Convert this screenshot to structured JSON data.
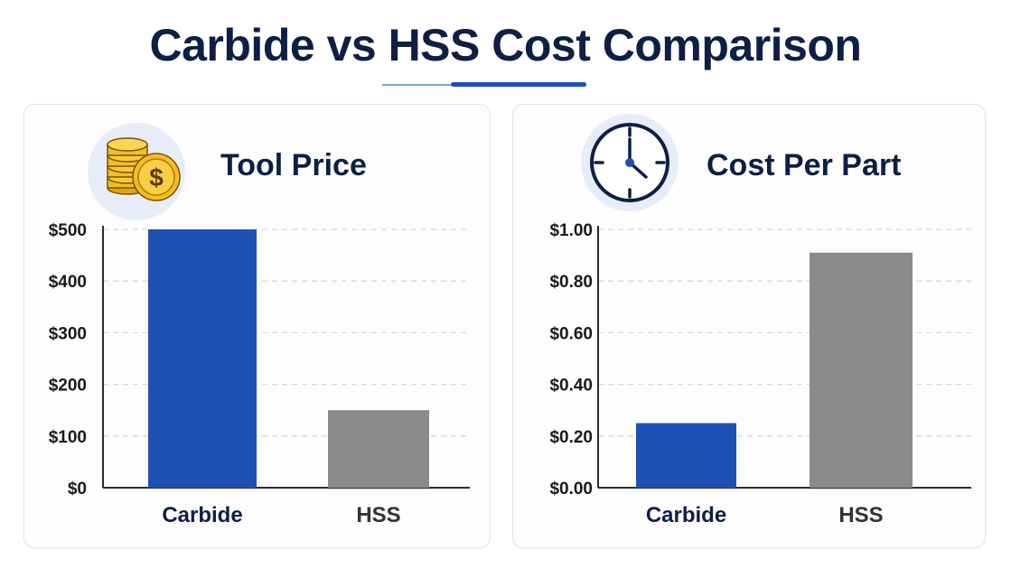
{
  "title": "Carbide vs HSS Cost Comparison",
  "chart_data": [
    {
      "type": "bar",
      "title": "Tool Price",
      "icon": "coins-dollar-icon",
      "categories": [
        "Carbide",
        "HSS"
      ],
      "values": [
        500,
        150
      ],
      "ylim": [
        0,
        500
      ],
      "yticks": [
        0,
        100,
        200,
        300,
        400,
        500
      ],
      "ytick_labels": [
        "$0",
        "$100",
        "$200",
        "$300",
        "$400",
        "$500"
      ],
      "colors": [
        "#1e50b4",
        "#8a8a8a"
      ],
      "label_colors": [
        "#0d1f45",
        "#333333"
      ],
      "grid": true
    },
    {
      "type": "bar",
      "title": "Cost Per Part",
      "icon": "clock-icon",
      "categories": [
        "Carbide",
        "HSS"
      ],
      "values": [
        0.25,
        0.91
      ],
      "ylim": [
        0,
        1.0
      ],
      "yticks": [
        0,
        0.2,
        0.4,
        0.6,
        0.8,
        1.0
      ],
      "ytick_labels": [
        "$0.00",
        "$0.20",
        "$0.40",
        "$0.60",
        "$0.80",
        "$1.00"
      ],
      "colors": [
        "#1e50b4",
        "#8a8a8a"
      ],
      "label_colors": [
        "#0d1f45",
        "#333333"
      ],
      "grid": true
    }
  ]
}
